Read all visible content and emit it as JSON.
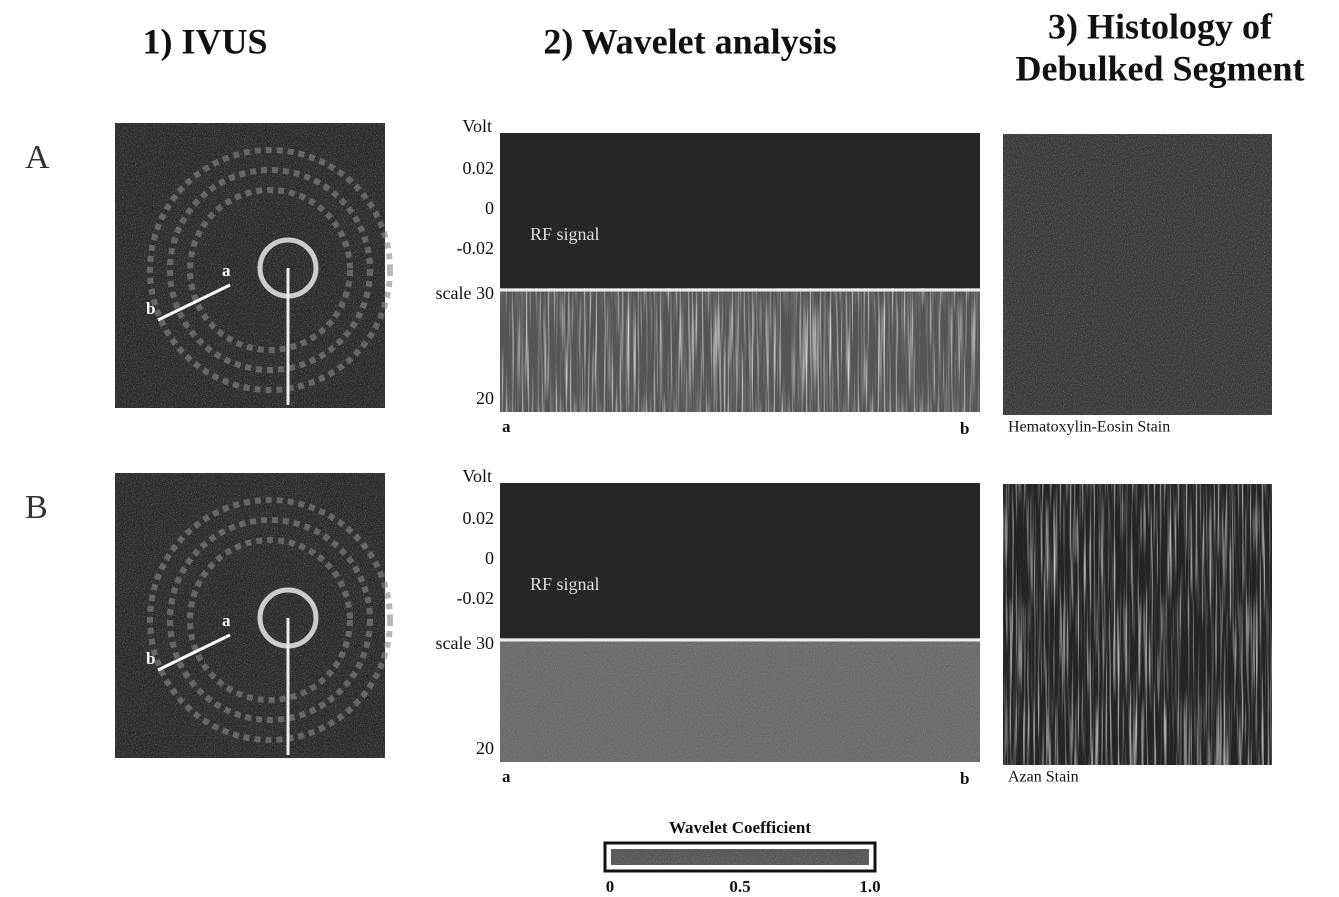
{
  "headers": {
    "ivus": "1) IVUS",
    "wavelet": "2) Wavelet analysis",
    "histology": [
      "3) Histology of",
      "Debulked Segment"
    ]
  },
  "rows": [
    {
      "label": "A",
      "ivus": {
        "point_a": "a",
        "point_b": "b"
      },
      "wavelet": {
        "y_label": "Volt",
        "y_ticks": [
          "0.02",
          "0",
          "-0.02"
        ],
        "signal_label": "RF signal",
        "scale_ticks": [
          "scale 30",
          "20"
        ],
        "x_start": "a",
        "x_end": "b"
      },
      "histology": {
        "caption": "Hematoxylin-Eosin Stain"
      }
    },
    {
      "label": "B",
      "ivus": {
        "point_a": "a",
        "point_b": "b"
      },
      "wavelet": {
        "y_label": "Volt",
        "y_ticks": [
          "0.02",
          "0",
          "-0.02"
        ],
        "signal_label": "RF signal",
        "scale_ticks": [
          "scale 30",
          "20"
        ],
        "x_start": "a",
        "x_end": "b"
      },
      "histology": {
        "caption": "Azan Stain"
      }
    }
  ],
  "colorbar": {
    "title": "Wavelet Coefficient",
    "ticks": [
      "0",
      "0.5",
      "1.0"
    ]
  }
}
